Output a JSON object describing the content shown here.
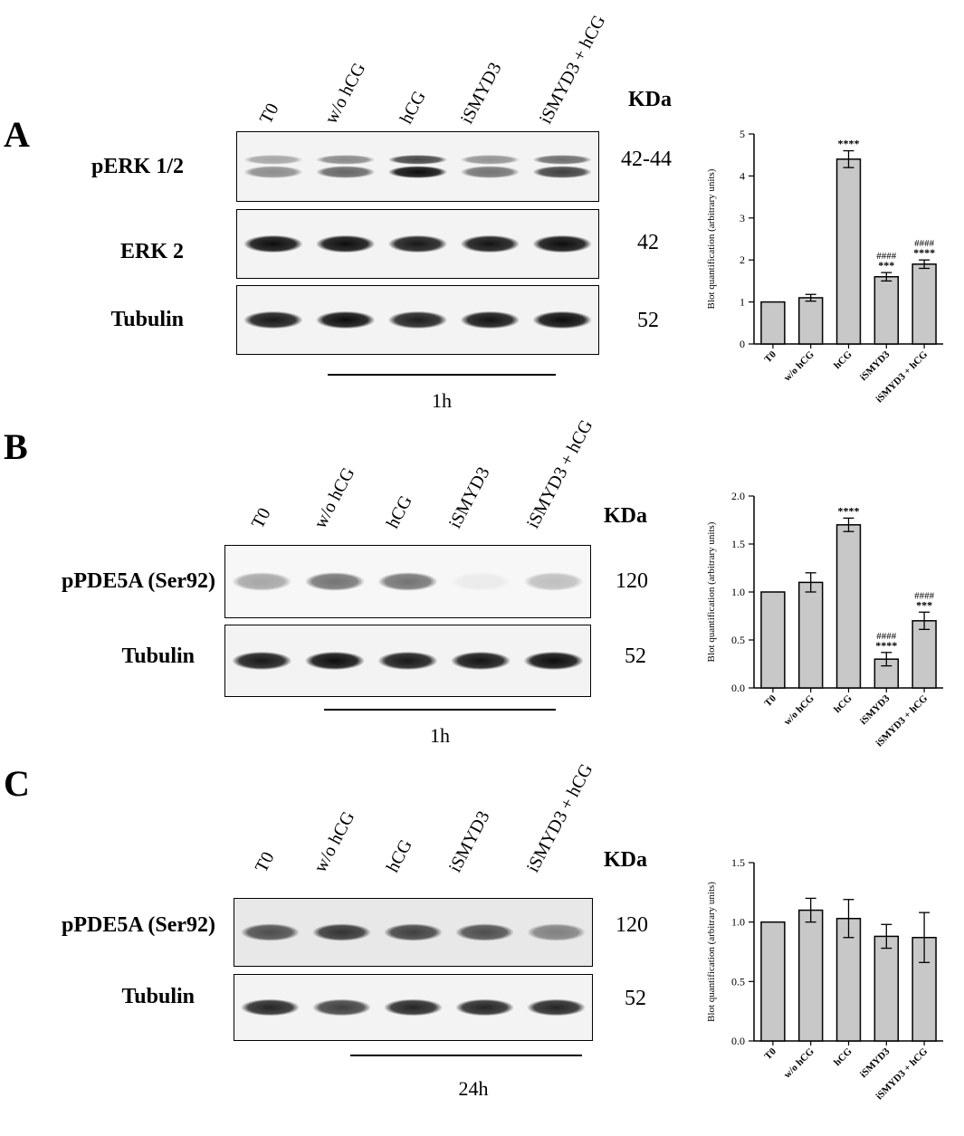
{
  "panels": [
    {
      "letter": "A",
      "lanes": [
        "T0",
        "w/o hCG",
        "hCG",
        "iSMYD3",
        "iSMYD3 + hCG"
      ],
      "kda_label": "KDa",
      "rows": [
        {
          "label": "pERK 1/2",
          "mw": "42-44",
          "intensity": [
            0.45,
            0.6,
            0.95,
            0.55,
            0.75
          ],
          "doublet": true
        },
        {
          "label": "ERK 2",
          "mw": "42",
          "intensity": [
            0.95,
            0.95,
            0.9,
            0.92,
            0.95
          ],
          "doublet": false
        },
        {
          "label": "Tubulin",
          "mw": "52",
          "intensity": [
            0.9,
            0.95,
            0.88,
            0.92,
            0.95
          ],
          "doublet": false
        }
      ],
      "time": "1h"
    },
    {
      "letter": "B",
      "lanes": [
        "T0",
        "w/o hCG",
        "hCG",
        "iSMYD3",
        "iSMYD3 + hCG"
      ],
      "kda_label": "KDa",
      "rows": [
        {
          "label": "pPDE5A (Ser92)",
          "mw": "120",
          "intensity": [
            0.35,
            0.55,
            0.55,
            0.08,
            0.25
          ],
          "doublet": false
        },
        {
          "label": "Tubulin",
          "mw": "52",
          "intensity": [
            0.9,
            0.95,
            0.9,
            0.92,
            0.95
          ],
          "doublet": false
        }
      ],
      "time": "1h"
    },
    {
      "letter": "C",
      "lanes": [
        "T0",
        "w/o hCG",
        "hCG",
        "iSMYD3",
        "iSMYD3 + hCG"
      ],
      "kda_label": "KDa",
      "rows": [
        {
          "label": "pPDE5A (Ser92)",
          "mw": "120",
          "intensity": [
            0.7,
            0.8,
            0.75,
            0.7,
            0.5
          ],
          "doublet": false
        },
        {
          "label": "Tubulin",
          "mw": "52",
          "intensity": [
            0.85,
            0.75,
            0.85,
            0.85,
            0.85
          ],
          "doublet": false
        }
      ],
      "time": "24h"
    }
  ],
  "chart_data": [
    {
      "type": "bar",
      "categories": [
        "T0",
        "w/o hCG",
        "hCG",
        "iSMYD3",
        "iSMYD3 + hCG"
      ],
      "values": [
        1.0,
        1.1,
        4.4,
        1.6,
        1.9
      ],
      "errors": [
        0,
        0.08,
        0.2,
        0.1,
        0.1
      ],
      "annotations": [
        [
          "",
          ""
        ],
        [
          "",
          ""
        ],
        [
          "****",
          ""
        ],
        [
          "***",
          "####"
        ],
        [
          "****",
          "####"
        ]
      ],
      "ylabel": "Blot quantification (arbitrary units)",
      "ylim": [
        0,
        5
      ],
      "yticks": [
        "0",
        "1",
        "2",
        "3",
        "4",
        "5"
      ],
      "bar_color": "#c8c8c8"
    },
    {
      "type": "bar",
      "categories": [
        "T0",
        "w/o hCG",
        "hCG",
        "iSMYD3",
        "iSMYD3 + hCG"
      ],
      "values": [
        1.0,
        1.1,
        1.7,
        0.3,
        0.7
      ],
      "errors": [
        0,
        0.1,
        0.07,
        0.07,
        0.09
      ],
      "annotations": [
        [
          "",
          ""
        ],
        [
          "",
          ""
        ],
        [
          "****",
          ""
        ],
        [
          "****",
          "####"
        ],
        [
          "***",
          "####"
        ]
      ],
      "ylabel": "Blot quantification (arbitrary units)",
      "ylim": [
        0,
        2.0
      ],
      "yticks": [
        "0.0",
        "0.5",
        "1.0",
        "1.5",
        "2.0"
      ],
      "bar_color": "#c8c8c8"
    },
    {
      "type": "bar",
      "categories": [
        "T0",
        "w/o hCG",
        "hCG",
        "iSMYD3",
        "iSMYD3 + hCG"
      ],
      "values": [
        1.0,
        1.1,
        1.03,
        0.88,
        0.87
      ],
      "errors": [
        0,
        0.1,
        0.16,
        0.1,
        0.21
      ],
      "annotations": [
        [
          "",
          ""
        ],
        [
          "",
          ""
        ],
        [
          "",
          ""
        ],
        [
          "",
          ""
        ],
        [
          "",
          ""
        ]
      ],
      "ylabel": "Blot quantification (arbitrary units)",
      "ylim": [
        0,
        1.5
      ],
      "yticks": [
        "0.0",
        "0.5",
        "1.0",
        "1.5"
      ],
      "bar_color": "#c8c8c8"
    }
  ]
}
